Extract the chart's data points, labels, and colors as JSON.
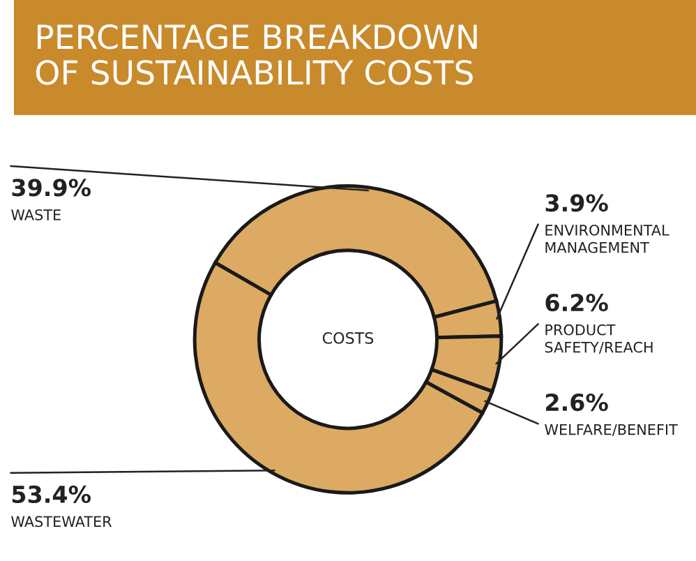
{
  "chart_data": {
    "type": "donut",
    "title": "PERCENTAGE BREAKDOWN\nOF SUSTAINABILITY COSTS",
    "categories": [
      "WASTE",
      "ENVIRONMENTAL\nMANAGEMENT",
      "PRODUCT\nSAFETY/REACH",
      "WELFARE/BENEFIT",
      "WASTEWATER"
    ],
    "values": [
      39.9,
      3.9,
      6.2,
      2.6,
      53.4
    ],
    "value_labels": [
      "39.9%",
      "3.9%",
      "6.2%",
      "2.6%",
      "53.4%"
    ],
    "colors": [
      "#dcaa62",
      "#dcaa62",
      "#dcaa62",
      "#dcaa62",
      "#dcaa62"
    ],
    "annotations": [
      "COSTS"
    ]
  }
}
